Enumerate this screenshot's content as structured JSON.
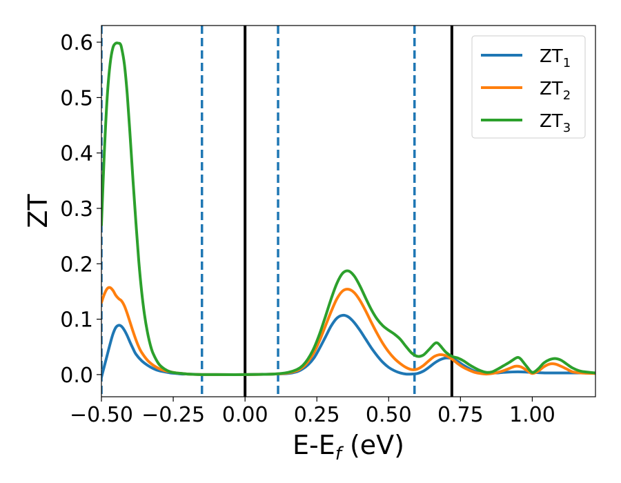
{
  "chart_data": {
    "type": "line",
    "xlabel": {
      "base": "E-E",
      "sub": "f",
      "unit": " (eV)"
    },
    "ylabel": "ZT",
    "xlim": [
      -0.5,
      1.22
    ],
    "ylim": [
      -0.04,
      0.63
    ],
    "xticks": [
      -0.5,
      -0.25,
      0.0,
      0.25,
      0.5,
      0.75,
      1.0
    ],
    "xtick_labels": [
      "−0.50",
      "−0.25",
      "0.00",
      "0.25",
      "0.50",
      "0.75",
      "1.00"
    ],
    "yticks": [
      0.0,
      0.1,
      0.2,
      0.3,
      0.4,
      0.5,
      0.6
    ],
    "ytick_labels": [
      "0.0",
      "0.1",
      "0.2",
      "0.3",
      "0.4",
      "0.5",
      "0.6"
    ],
    "grid": false,
    "legend_position": "top-right",
    "vlines": [
      {
        "x": -0.5,
        "style": "dashed",
        "color": "#1f77b4"
      },
      {
        "x": -0.15,
        "style": "dashed",
        "color": "#1f77b4"
      },
      {
        "x": 0.0,
        "style": "solid",
        "color": "#000000"
      },
      {
        "x": 0.115,
        "style": "dashed",
        "color": "#1f77b4"
      },
      {
        "x": 0.59,
        "style": "dashed",
        "color": "#1f77b4"
      },
      {
        "x": 0.72,
        "style": "solid",
        "color": "#000000"
      }
    ],
    "series": [
      {
        "name": {
          "base": "ZT",
          "sub": "1"
        },
        "color": "#1f77b4",
        "x": [
          -0.5,
          -0.49,
          -0.48,
          -0.47,
          -0.46,
          -0.45,
          -0.44,
          -0.43,
          -0.42,
          -0.41,
          -0.4,
          -0.39,
          -0.38,
          -0.36,
          -0.34,
          -0.32,
          -0.3,
          -0.28,
          -0.26,
          -0.24,
          -0.22,
          -0.2,
          -0.15,
          -0.1,
          0.0,
          0.1,
          0.15,
          0.18,
          0.2,
          0.22,
          0.24,
          0.26,
          0.28,
          0.3,
          0.32,
          0.34,
          0.36,
          0.38,
          0.4,
          0.42,
          0.44,
          0.46,
          0.48,
          0.5,
          0.52,
          0.54,
          0.56,
          0.58,
          0.6,
          0.62,
          0.64,
          0.66,
          0.68,
          0.7,
          0.72,
          0.74,
          0.76,
          0.78,
          0.8,
          0.82,
          0.84,
          0.86,
          0.88,
          0.9,
          0.95,
          1.0,
          1.05,
          1.1,
          1.15,
          1.22
        ],
        "y": [
          -0.005,
          0.015,
          0.035,
          0.055,
          0.073,
          0.085,
          0.089,
          0.087,
          0.08,
          0.07,
          0.058,
          0.047,
          0.037,
          0.025,
          0.017,
          0.011,
          0.007,
          0.005,
          0.003,
          0.002,
          0.001,
          0.001,
          0.0,
          0.0,
          0.0,
          0.001,
          0.002,
          0.005,
          0.01,
          0.018,
          0.03,
          0.048,
          0.068,
          0.088,
          0.102,
          0.107,
          0.104,
          0.094,
          0.08,
          0.064,
          0.048,
          0.034,
          0.022,
          0.013,
          0.007,
          0.003,
          0.001,
          0.001,
          0.002,
          0.006,
          0.013,
          0.021,
          0.027,
          0.03,
          0.029,
          0.024,
          0.017,
          0.011,
          0.006,
          0.004,
          0.003,
          0.003,
          0.003,
          0.004,
          0.005,
          0.004,
          0.003,
          0.003,
          0.003,
          0.003
        ]
      },
      {
        "name": {
          "base": "ZT",
          "sub": "2"
        },
        "color": "#ff7f0e",
        "x": [
          -0.5,
          -0.49,
          -0.48,
          -0.47,
          -0.46,
          -0.45,
          -0.44,
          -0.43,
          -0.42,
          -0.41,
          -0.4,
          -0.39,
          -0.38,
          -0.37,
          -0.36,
          -0.34,
          -0.32,
          -0.3,
          -0.28,
          -0.26,
          -0.24,
          -0.22,
          -0.2,
          -0.15,
          -0.1,
          0.0,
          0.1,
          0.15,
          0.18,
          0.2,
          0.22,
          0.24,
          0.26,
          0.28,
          0.3,
          0.32,
          0.34,
          0.36,
          0.38,
          0.4,
          0.42,
          0.44,
          0.46,
          0.48,
          0.5,
          0.52,
          0.54,
          0.56,
          0.58,
          0.6,
          0.62,
          0.64,
          0.66,
          0.68,
          0.7,
          0.72,
          0.74,
          0.76,
          0.78,
          0.8,
          0.82,
          0.84,
          0.86,
          0.88,
          0.9,
          0.92,
          0.94,
          0.96,
          0.98,
          1.0,
          1.02,
          1.04,
          1.06,
          1.08,
          1.1,
          1.12,
          1.14,
          1.17,
          1.22
        ],
        "y": [
          0.13,
          0.145,
          0.155,
          0.157,
          0.152,
          0.143,
          0.137,
          0.133,
          0.124,
          0.11,
          0.094,
          0.078,
          0.063,
          0.05,
          0.04,
          0.026,
          0.017,
          0.011,
          0.007,
          0.005,
          0.003,
          0.002,
          0.001,
          0.0,
          0.0,
          0.0,
          0.001,
          0.003,
          0.007,
          0.013,
          0.024,
          0.04,
          0.062,
          0.088,
          0.114,
          0.137,
          0.151,
          0.154,
          0.148,
          0.134,
          0.115,
          0.094,
          0.074,
          0.056,
          0.041,
          0.029,
          0.02,
          0.013,
          0.009,
          0.01,
          0.016,
          0.025,
          0.033,
          0.036,
          0.034,
          0.028,
          0.02,
          0.013,
          0.008,
          0.004,
          0.002,
          0.001,
          0.002,
          0.004,
          0.007,
          0.011,
          0.015,
          0.014,
          0.008,
          0.002,
          0.006,
          0.014,
          0.019,
          0.019,
          0.015,
          0.01,
          0.005,
          0.003,
          0.002
        ]
      },
      {
        "name": {
          "base": "ZT",
          "sub": "3"
        },
        "color": "#2ca02c",
        "x": [
          -0.5,
          -0.49,
          -0.48,
          -0.47,
          -0.46,
          -0.45,
          -0.44,
          -0.435,
          -0.43,
          -0.42,
          -0.41,
          -0.4,
          -0.39,
          -0.38,
          -0.37,
          -0.36,
          -0.35,
          -0.34,
          -0.33,
          -0.32,
          -0.3,
          -0.28,
          -0.26,
          -0.24,
          -0.22,
          -0.2,
          -0.15,
          -0.1,
          0.0,
          0.1,
          0.15,
          0.18,
          0.2,
          0.22,
          0.24,
          0.26,
          0.28,
          0.3,
          0.32,
          0.34,
          0.36,
          0.38,
          0.4,
          0.42,
          0.44,
          0.46,
          0.48,
          0.5,
          0.52,
          0.54,
          0.56,
          0.58,
          0.6,
          0.62,
          0.64,
          0.66,
          0.67,
          0.68,
          0.7,
          0.72,
          0.74,
          0.76,
          0.78,
          0.8,
          0.82,
          0.84,
          0.86,
          0.88,
          0.9,
          0.92,
          0.94,
          0.95,
          0.96,
          0.98,
          1.0,
          1.02,
          1.04,
          1.06,
          1.08,
          1.1,
          1.12,
          1.14,
          1.17,
          1.22
        ],
        "y": [
          0.27,
          0.4,
          0.5,
          0.56,
          0.59,
          0.598,
          0.598,
          0.597,
          0.59,
          0.56,
          0.505,
          0.43,
          0.35,
          0.275,
          0.205,
          0.15,
          0.108,
          0.077,
          0.054,
          0.038,
          0.019,
          0.01,
          0.005,
          0.003,
          0.002,
          0.001,
          0.0,
          0.0,
          0.0,
          0.001,
          0.004,
          0.009,
          0.016,
          0.029,
          0.048,
          0.074,
          0.105,
          0.137,
          0.165,
          0.183,
          0.187,
          0.178,
          0.16,
          0.138,
          0.117,
          0.1,
          0.088,
          0.08,
          0.073,
          0.064,
          0.051,
          0.039,
          0.033,
          0.035,
          0.045,
          0.056,
          0.057,
          0.052,
          0.04,
          0.033,
          0.03,
          0.025,
          0.018,
          0.012,
          0.007,
          0.004,
          0.005,
          0.01,
          0.016,
          0.022,
          0.029,
          0.031,
          0.028,
          0.015,
          0.004,
          0.01,
          0.021,
          0.027,
          0.029,
          0.026,
          0.019,
          0.012,
          0.006,
          0.003
        ]
      }
    ]
  }
}
